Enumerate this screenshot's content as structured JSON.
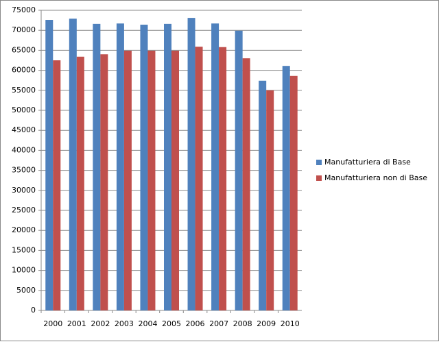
{
  "chart_data": {
    "type": "bar",
    "categories": [
      "2000",
      "2001",
      "2002",
      "2003",
      "2004",
      "2005",
      "2006",
      "2007",
      "2008",
      "2009",
      "2010"
    ],
    "series": [
      {
        "name": "Manufatturiera di Base",
        "color": "#4f81bd",
        "values": [
          72600,
          72900,
          71600,
          71700,
          71400,
          71600,
          73100,
          71700,
          69900,
          57400,
          61100
        ]
      },
      {
        "name": "Manufatturiera non di Base",
        "color": "#c0504d",
        "values": [
          62500,
          63400,
          64000,
          64900,
          64900,
          64900,
          65900,
          65800,
          63000,
          55000,
          58600
        ]
      }
    ],
    "ylim": [
      0,
      75000
    ],
    "yticks": [
      0,
      5000,
      10000,
      15000,
      20000,
      25000,
      30000,
      35000,
      40000,
      45000,
      50000,
      55000,
      60000,
      65000,
      70000,
      75000
    ],
    "grid": true,
    "legend": "right"
  }
}
